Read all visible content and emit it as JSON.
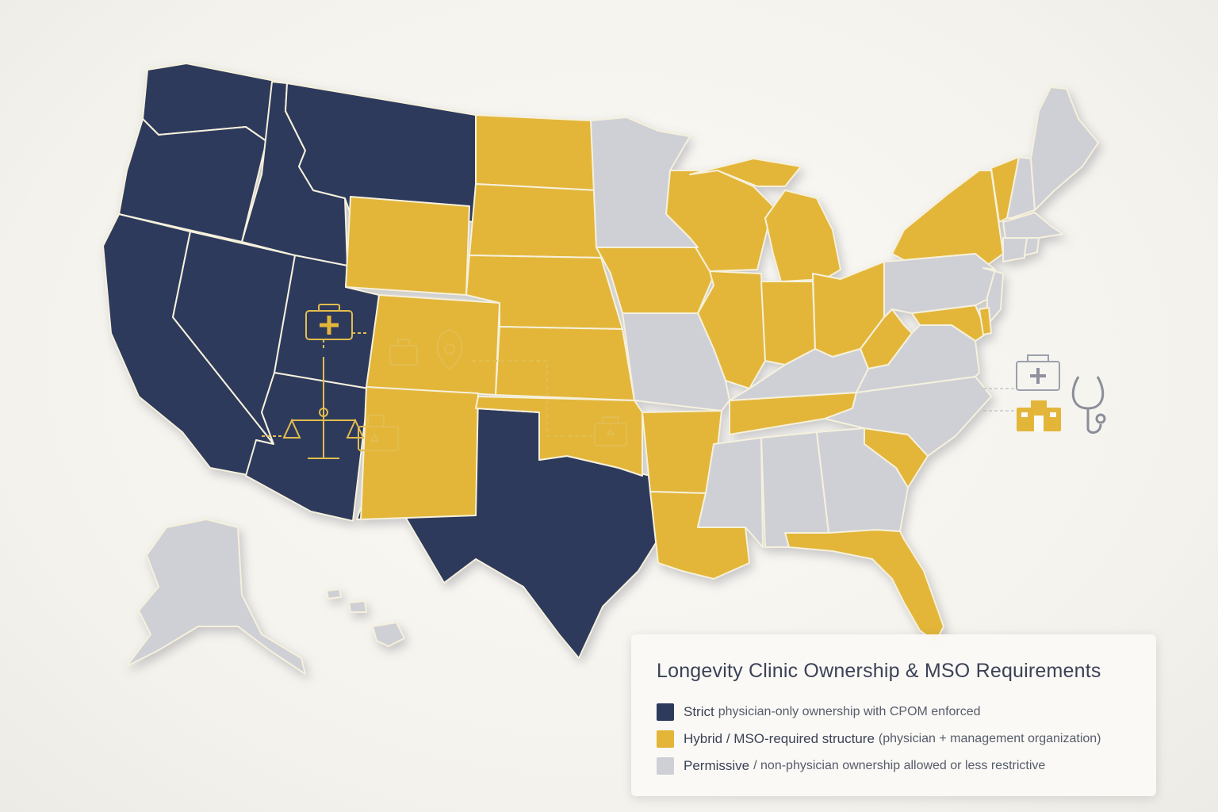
{
  "legend": {
    "title": "Longevity Clinic Ownership & MSO Requirements",
    "items": [
      {
        "category": "strict",
        "bold": "Strict",
        "rest": "physician-only ownership with CPOM enforced",
        "color": "#2d3a5c"
      },
      {
        "category": "hybrid",
        "bold": "Hybrid / MSO-required structure",
        "rest": "(physician + management organization)",
        "color": "#e3b63a"
      },
      {
        "category": "permissive",
        "bold": "Permissive",
        "rest": "/ non-physician ownership allowed or less restrictive",
        "color": "#cfd0d6"
      }
    ]
  },
  "map_data": {
    "type": "choropleth",
    "region": "United States",
    "states": {
      "WA": "strict",
      "OR": "strict",
      "CA": "strict",
      "NV": "strict",
      "ID": "strict",
      "MT": "strict",
      "UT": "strict",
      "AZ": "strict",
      "TX": "strict",
      "WY": "hybrid",
      "CO": "hybrid",
      "NM": "hybrid",
      "ND": "hybrid",
      "SD": "hybrid",
      "NE": "hybrid",
      "KS": "hybrid",
      "OK": "hybrid",
      "IA": "hybrid",
      "AR": "hybrid",
      "LA": "hybrid",
      "WI": "hybrid",
      "MI": "hybrid",
      "IL": "hybrid",
      "IN": "hybrid",
      "OH": "hybrid",
      "WV": "hybrid",
      "TN": "hybrid",
      "SC": "hybrid",
      "FL": "hybrid",
      "NY": "hybrid",
      "VT": "hybrid",
      "MD": "hybrid",
      "DE": "hybrid",
      "MN": "permissive",
      "MO": "permissive",
      "KY": "permissive",
      "MS": "permissive",
      "AL": "permissive",
      "GA": "permissive",
      "NC": "permissive",
      "VA": "permissive",
      "PA": "permissive",
      "NJ": "permissive",
      "NH": "permissive",
      "ME": "permissive",
      "MA": "permissive",
      "CT": "permissive",
      "RI": "permissive",
      "AK": "permissive",
      "HI": "permissive"
    },
    "icons": [
      "medical-kit-icon",
      "scale-of-justice-icon",
      "document-icon",
      "stethoscope-icon",
      "medical-bag-icon",
      "hospital-icon"
    ]
  }
}
